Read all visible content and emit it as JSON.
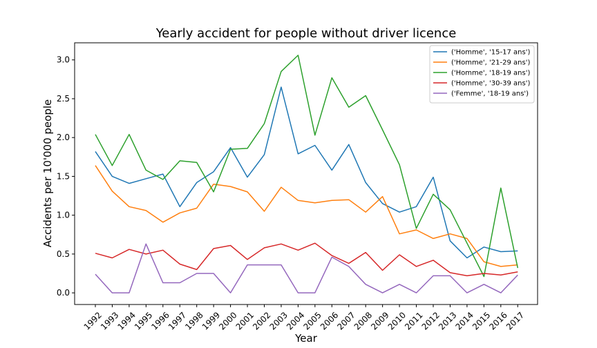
{
  "chart_data": {
    "type": "line",
    "title": "Yearly accident for people without driver licence",
    "xlabel": "Year",
    "ylabel": "Accidents per 10'000 people",
    "x": [
      1992,
      1993,
      1994,
      1995,
      1996,
      1997,
      1998,
      1999,
      2000,
      2001,
      2002,
      2003,
      2004,
      2005,
      2006,
      2007,
      2008,
      2009,
      2010,
      2011,
      2012,
      2013,
      2014,
      2015,
      2016,
      2017
    ],
    "ylim": [
      -0.15,
      3.22
    ],
    "yticks": [
      0.0,
      0.5,
      1.0,
      1.5,
      2.0,
      2.5,
      3.0
    ],
    "ytick_labels": [
      "0.0",
      "0.5",
      "1.0",
      "1.5",
      "2.0",
      "2.5",
      "3.0"
    ],
    "grid": false,
    "legend_position": "top-right",
    "series": [
      {
        "name": "('Homme', '15-17 ans')",
        "color": "#1f77b4",
        "values": [
          1.82,
          1.5,
          1.41,
          1.47,
          1.53,
          1.11,
          1.42,
          1.56,
          1.87,
          1.49,
          1.78,
          2.65,
          1.79,
          1.9,
          1.58,
          1.91,
          1.42,
          1.15,
          1.04,
          1.11,
          1.49,
          0.67,
          0.45,
          0.59,
          0.53,
          0.54
        ]
      },
      {
        "name": "('Homme', '21-29 ans')",
        "color": "#ff7f0e",
        "values": [
          1.64,
          1.31,
          1.11,
          1.06,
          0.91,
          1.03,
          1.09,
          1.4,
          1.37,
          1.3,
          1.05,
          1.36,
          1.19,
          1.16,
          1.19,
          1.2,
          1.04,
          1.24,
          0.76,
          0.81,
          0.7,
          0.76,
          0.7,
          0.4,
          0.34,
          0.36
        ]
      },
      {
        "name": "('Homme', '18-19 ans')",
        "color": "#2ca02c",
        "values": [
          2.04,
          1.64,
          2.04,
          1.58,
          1.46,
          1.7,
          1.68,
          1.3,
          1.85,
          1.86,
          2.18,
          2.85,
          3.06,
          2.03,
          2.77,
          2.39,
          2.54,
          2.1,
          1.65,
          0.83,
          1.27,
          1.07,
          0.64,
          0.21,
          1.35,
          0.32
        ]
      },
      {
        "name": "('Homme', '30-39 ans')",
        "color": "#d62728",
        "values": [
          0.51,
          0.45,
          0.56,
          0.5,
          0.55,
          0.37,
          0.3,
          0.57,
          0.61,
          0.43,
          0.58,
          0.63,
          0.55,
          0.64,
          0.48,
          0.38,
          0.52,
          0.29,
          0.49,
          0.34,
          0.42,
          0.26,
          0.22,
          0.25,
          0.23,
          0.27
        ]
      },
      {
        "name": "('Femme', '18-19 ans')",
        "color": "#9467bd",
        "values": [
          0.24,
          0.0,
          0.0,
          0.63,
          0.13,
          0.13,
          0.25,
          0.25,
          0.0,
          0.36,
          0.36,
          0.36,
          0.0,
          0.0,
          0.46,
          0.34,
          0.11,
          0.0,
          0.11,
          0.0,
          0.22,
          0.22,
          0.0,
          0.11,
          0.0,
          0.23
        ]
      }
    ]
  }
}
